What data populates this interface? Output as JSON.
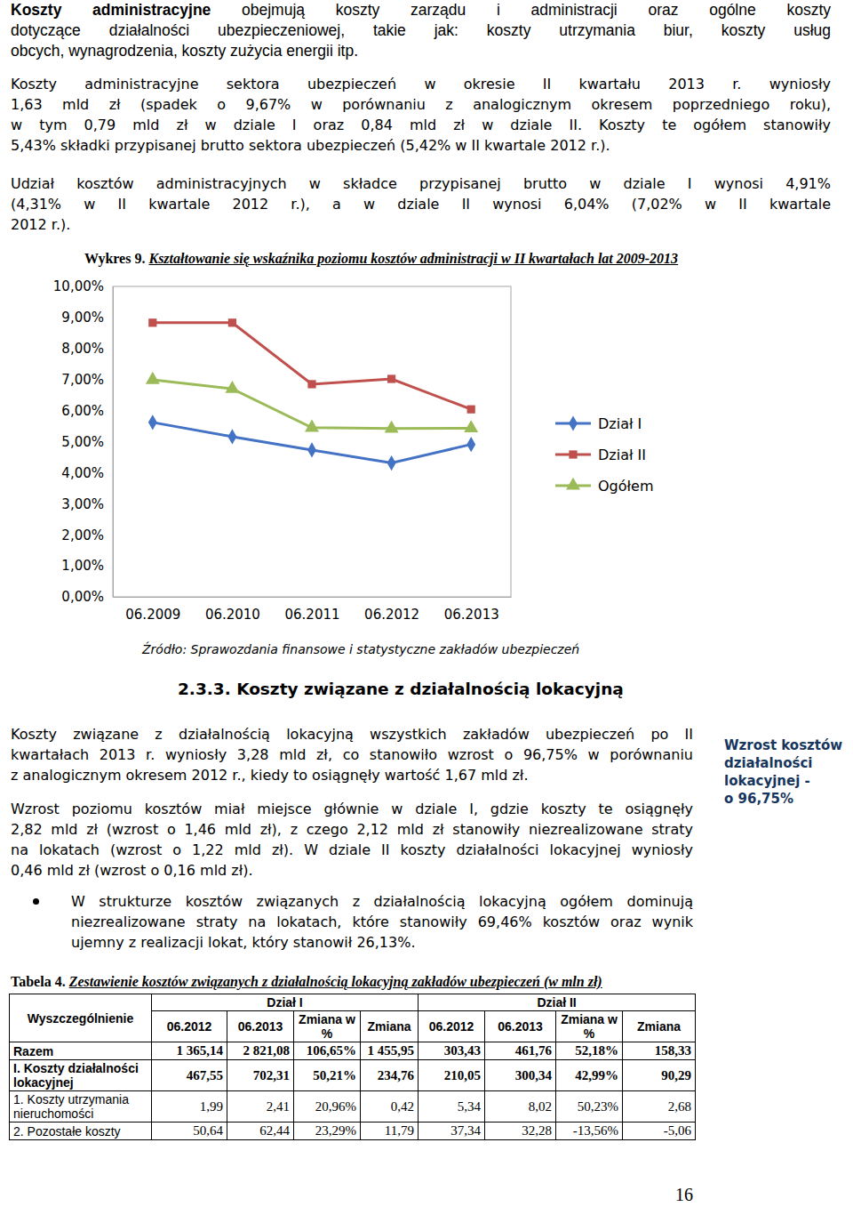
{
  "paragraphs": [
    {
      "lead": "Koszty administracyjne",
      "lines": [
        "obejmują koszty zarządu i administracji oraz ogólne koszty",
        "dotyczące działalności ubezpieczeniowej, takie jak: koszty utrzymania biur, koszty usług",
        "obcych, wynagrodzenia, koszty zużycia energii itp."
      ]
    },
    {
      "lines": [
        "Koszty administracyjne sektora ubezpieczeń w okresie II kwartału 2013 r. wyniosły",
        "1,63 mld zł (spadek o 9,67% w porównaniu z analogicznym okresem poprzedniego roku),",
        "w tym 0,79 mld zł w dziale I oraz 0,84 mld zł w dziale II. Koszty te ogółem stanowiły",
        "5,43% składki przypisanej brutto sektora ubezpieczeń (5,42% w II kwartale 2012 r.)."
      ]
    },
    {
      "lines": [
        "Udział kosztów administracyjnych w składce przypisanej brutto w dziale I wynosi 4,91%",
        "(4,31% w II kwartale 2012 r.), a w dziale II wynosi 6,04% (7,02% w II kwartale",
        "2012 r.)."
      ]
    },
    {
      "lines": [
        "Koszty związane z działalnością lokacyjną wszystkich zakładów ubezpieczeń po II",
        "kwartałach 2013 r. wyniosły 3,28 mld zł, co stanowiło wzrost o 96,75% w porównaniu",
        "z analogicznym okresem 2012 r., kiedy to osiągnęły wartość 1,67 mld zł."
      ]
    },
    {
      "lines": [
        "Wzrost poziomu kosztów miał miejsce głównie w dziale I, gdzie koszty te osiągnęły",
        "2,82 mld zł (wzrost o 1,46 mld zł), z czego 2,12 mld zł stanowiły niezrealizowane straty",
        "na lokatach (wzrost o 1,22 mld zł). W dziale II koszty działalności lokacyjnej wyniosły",
        "0,46 mld zł (wzrost o 0,16 mld zł)."
      ]
    }
  ],
  "figure": {
    "label": "Wykres 9.",
    "source": "Źródło: Sprawozdania finansowe i statystyczne zakładów ubezpieczeń"
  },
  "chart_data": {
    "type": "line",
    "title": "Kształtowanie się wskaźnika poziomu kosztów administracji w II kwartałach lat 2009-2013",
    "categories": [
      "06.2009",
      "06.2010",
      "06.2011",
      "06.2012",
      "06.2013"
    ],
    "series": [
      {
        "name": "Dział I",
        "color": "#4472c4",
        "marker": "diamond",
        "values": [
          5.62,
          5.16,
          4.73,
          4.31,
          4.91
        ]
      },
      {
        "name": "Dział II",
        "color": "#c0504d",
        "marker": "square",
        "values": [
          8.83,
          8.83,
          6.85,
          7.02,
          6.04
        ]
      },
      {
        "name": "Ogółem",
        "color": "#9bbb59",
        "marker": "triangle",
        "values": [
          6.99,
          6.7,
          5.45,
          5.42,
          5.43
        ]
      }
    ],
    "ylim": [
      0,
      10
    ],
    "yticks": [
      {
        "value": 0,
        "label": "0,00%"
      },
      {
        "value": 1,
        "label": "1,00%"
      },
      {
        "value": 2,
        "label": "2,00%"
      },
      {
        "value": 3,
        "label": "3,00%"
      },
      {
        "value": 4,
        "label": "4,00%"
      },
      {
        "value": 5,
        "label": "5,00%"
      },
      {
        "value": 6,
        "label": "6,00%"
      },
      {
        "value": 7,
        "label": "7,00%"
      },
      {
        "value": 8,
        "label": "8,00%"
      },
      {
        "value": 9,
        "label": "9,00%"
      },
      {
        "value": 10,
        "label": "10,00%"
      }
    ],
    "grid": false,
    "legend": "right"
  },
  "section": {
    "heading": "2.3.3. Koszty związane z działalnością lokacyjną"
  },
  "sidebar": {
    "lines": [
      "Wzrost kosztów",
      "działalności",
      "lokacyjnej -",
      "o 96,75%"
    ]
  },
  "bullet": {
    "lines": [
      "W strukturze kosztów związanych z działalnością lokacyjną ogółem dominują",
      "niezrealizowane straty na lokatach, które stanowiły 69,46% kosztów oraz wynik",
      "ujemny z realizacji lokat, który stanowił 26,13%."
    ]
  },
  "table": {
    "label": "Tabela 4.",
    "caption": "Zestawienie kosztów związanych z działalnością lokacyjną zakładów ubezpieczeń (w mln zł)",
    "corner": "Wyszczególnienie",
    "groups": [
      "Dział I",
      "Dział II"
    ],
    "columns": [
      "06.2012",
      "06.2013",
      "Zmiana w %",
      "Zmiana",
      "06.2012",
      "06.2013",
      "Zmiana w %",
      "Zmiana"
    ],
    "rows": [
      [
        "Razem",
        "1 365,14",
        "2 821,08",
        "106,65%",
        "1 455,95",
        "303,43",
        "461,76",
        "52,18%",
        "158,33"
      ],
      [
        "I. Koszty działalności lokacyjnej",
        "467,55",
        "702,31",
        "50,21%",
        "234,76",
        "210,05",
        "300,34",
        "42,99%",
        "90,29"
      ],
      [
        "1. Koszty utrzymania nieruchomości",
        "1,99",
        "2,41",
        "20,96%",
        "0,42",
        "5,34",
        "8,02",
        "50,23%",
        "2,68"
      ],
      [
        "2. Pozostałe koszty",
        "50,64",
        "62,44",
        "23,29%",
        "11,79",
        "37,34",
        "32,28",
        "-13,56%",
        "-5,06"
      ]
    ]
  },
  "page_number": "16"
}
